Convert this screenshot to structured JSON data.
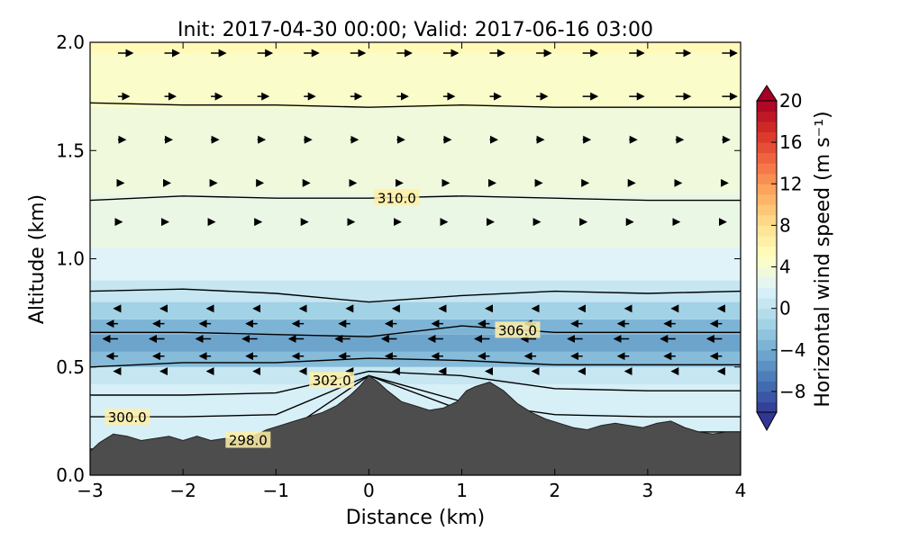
{
  "chart_data": {
    "type": "heatmap",
    "title": "Init: 2017-04-30 00:00; Valid: 2017-06-16 03:00",
    "xlabel": "Distance (km)",
    "ylabel": "Altitude (km)",
    "xlim": [
      -3,
      4
    ],
    "ylim": [
      0,
      2
    ],
    "xticks": [
      "−3",
      "−2",
      "−1",
      "0",
      "1",
      "2",
      "3",
      "4"
    ],
    "yticks": [
      "0.0",
      "0.5",
      "1.0",
      "1.5",
      "2.0"
    ],
    "colorbar": {
      "label": "Horizontal wind speed (m s⁻¹)",
      "range": [
        -10,
        20
      ],
      "extend": "both",
      "ticks": [
        "−8",
        "−4",
        "0",
        "4",
        "8",
        "12",
        "16",
        "20"
      ],
      "colormap": "RdYlBu_r"
    },
    "terrain": {
      "color": "#4d4d4d",
      "x": [
        -3,
        -2.9,
        -2.75,
        -2.6,
        -2.45,
        -2.3,
        -2.15,
        -2.0,
        -1.85,
        -1.7,
        -1.55,
        -1.4,
        -1.25,
        -1.1,
        -0.95,
        -0.8,
        -0.65,
        -0.5,
        -0.35,
        -0.2,
        -0.1,
        0.0,
        0.1,
        0.2,
        0.35,
        0.5,
        0.65,
        0.8,
        0.95,
        1.05,
        1.15,
        1.3,
        1.45,
        1.6,
        1.75,
        1.9,
        2.05,
        2.2,
        2.35,
        2.5,
        2.65,
        2.8,
        2.95,
        3.1,
        3.25,
        3.4,
        3.55,
        3.7,
        3.85,
        4.0
      ],
      "height": [
        0.11,
        0.15,
        0.19,
        0.18,
        0.16,
        0.17,
        0.18,
        0.16,
        0.18,
        0.16,
        0.17,
        0.16,
        0.18,
        0.21,
        0.23,
        0.25,
        0.27,
        0.29,
        0.32,
        0.37,
        0.41,
        0.46,
        0.43,
        0.39,
        0.34,
        0.32,
        0.3,
        0.31,
        0.34,
        0.39,
        0.41,
        0.43,
        0.39,
        0.33,
        0.29,
        0.26,
        0.24,
        0.22,
        0.21,
        0.23,
        0.24,
        0.23,
        0.22,
        0.24,
        0.25,
        0.22,
        0.2,
        0.19,
        0.2,
        0.2
      ]
    },
    "wind_speed_bands": [
      {
        "base": 0.0,
        "top": 0.42,
        "value": 1.5
      },
      {
        "base": 0.42,
        "top": 0.5,
        "value": 0.5
      },
      {
        "base": 0.5,
        "top": 0.57,
        "value": -3.0
      },
      {
        "base": 0.57,
        "top": 0.65,
        "value": -4.5
      },
      {
        "base": 0.65,
        "top": 0.72,
        "value": -3.5
      },
      {
        "base": 0.72,
        "top": 0.8,
        "value": -1.5
      },
      {
        "base": 0.8,
        "top": 0.9,
        "value": 0.5
      },
      {
        "base": 0.9,
        "top": 1.05,
        "value": 2.0
      },
      {
        "base": 1.05,
        "top": 1.3,
        "value": 3.0
      },
      {
        "base": 1.3,
        "top": 1.7,
        "value": 3.5
      },
      {
        "base": 1.7,
        "top": 1.95,
        "value": 4.5
      },
      {
        "base": 1.95,
        "top": 2.0,
        "value": 5.5
      }
    ],
    "potential_temperature_contours": [
      {
        "level": 298.0,
        "label": "298.0",
        "label_x": -1.3,
        "points": [
          [
            -3,
            0.12
          ],
          [
            -2,
            0.15
          ],
          [
            -1,
            0.17
          ],
          [
            0,
            0.46
          ],
          [
            1,
            0.3
          ],
          [
            2,
            0.2
          ],
          [
            3,
            0.2
          ],
          [
            4,
            0.2
          ]
        ]
      },
      {
        "level": 300.0,
        "label": "300.0",
        "label_x": -2.6,
        "points": [
          [
            -3,
            0.27
          ],
          [
            -2,
            0.27
          ],
          [
            -1,
            0.28
          ],
          [
            0,
            0.46
          ],
          [
            1,
            0.34
          ],
          [
            2,
            0.28
          ],
          [
            3,
            0.27
          ],
          [
            4,
            0.27
          ]
        ]
      },
      {
        "level": 302.0,
        "label": "302.0",
        "label_x": -0.4,
        "points": [
          [
            -3,
            0.37
          ],
          [
            -2,
            0.37
          ],
          [
            -1,
            0.38
          ],
          [
            0,
            0.48
          ],
          [
            1,
            0.46
          ],
          [
            2,
            0.4
          ],
          [
            3,
            0.39
          ],
          [
            4,
            0.39
          ]
        ]
      },
      {
        "level": 304.0,
        "label": "",
        "label_x": 0,
        "points": [
          [
            -3,
            0.5
          ],
          [
            -2,
            0.52
          ],
          [
            -1,
            0.52
          ],
          [
            0,
            0.54
          ],
          [
            1,
            0.53
          ],
          [
            2,
            0.51
          ],
          [
            3,
            0.51
          ],
          [
            4,
            0.51
          ]
        ]
      },
      {
        "level": 306.0,
        "label": "306.0",
        "label_x": 1.6,
        "points": [
          [
            -3,
            0.66
          ],
          [
            -2,
            0.66
          ],
          [
            -1,
            0.65
          ],
          [
            0,
            0.64
          ],
          [
            1,
            0.69
          ],
          [
            2,
            0.66
          ],
          [
            3,
            0.66
          ],
          [
            4,
            0.66
          ]
        ]
      },
      {
        "level": 308.0,
        "label": "",
        "label_x": 0,
        "points": [
          [
            -3,
            0.85
          ],
          [
            -2,
            0.86
          ],
          [
            -1,
            0.84
          ],
          [
            0,
            0.8
          ],
          [
            1,
            0.83
          ],
          [
            2,
            0.85
          ],
          [
            3,
            0.84
          ],
          [
            4,
            0.85
          ]
        ]
      },
      {
        "level": 310.0,
        "label": "310.0",
        "label_x": 0.3,
        "points": [
          [
            -3,
            1.27
          ],
          [
            -2,
            1.29
          ],
          [
            -1,
            1.28
          ],
          [
            0,
            1.28
          ],
          [
            1,
            1.29
          ],
          [
            2,
            1.28
          ],
          [
            3,
            1.27
          ],
          [
            4,
            1.27
          ]
        ]
      },
      {
        "level": 312.0,
        "label": "",
        "label_x": 0,
        "points": [
          [
            -3,
            1.72
          ],
          [
            -2,
            1.71
          ],
          [
            -1,
            1.71
          ],
          [
            0,
            1.7
          ],
          [
            1,
            1.71
          ],
          [
            2,
            1.7
          ],
          [
            3,
            1.7
          ],
          [
            4,
            1.7
          ]
        ]
      }
    ],
    "wind_vectors": {
      "x": [
        -2.7,
        -2.2,
        -1.7,
        -1.2,
        -0.7,
        -0.2,
        0.3,
        0.8,
        1.3,
        1.8,
        2.3,
        2.8,
        3.3,
        3.8
      ],
      "rows": [
        {
          "z": 1.95,
          "u": [
            4,
            4,
            4,
            4,
            4,
            4,
            4,
            4,
            4,
            4,
            4,
            4,
            4,
            4
          ]
        },
        {
          "z": 1.75,
          "u": [
            3,
            3,
            3,
            3,
            3,
            3,
            3,
            3,
            3,
            3,
            4,
            4,
            4,
            4
          ]
        },
        {
          "z": 1.55,
          "u": [
            2,
            2,
            2,
            2,
            2,
            2,
            2,
            2,
            2,
            2,
            2,
            2,
            2,
            2
          ]
        },
        {
          "z": 1.35,
          "u": [
            1.5,
            1.5,
            1.5,
            1.5,
            1.5,
            1.5,
            1.5,
            1.5,
            1.5,
            1.5,
            1.5,
            1.5,
            1.5,
            1.5
          ]
        },
        {
          "z": 1.17,
          "u": [
            1,
            1,
            1,
            1,
            1,
            1,
            1,
            1,
            1,
            1,
            1,
            1,
            1,
            1
          ]
        },
        {
          "z": 0.77,
          "u": [
            -1,
            -1,
            -1,
            -1,
            -1,
            -1,
            -1,
            -1,
            -1,
            -1,
            -1,
            -1,
            -1,
            -1
          ]
        },
        {
          "z": 0.7,
          "u": [
            -3,
            -3,
            -3,
            -3,
            -3,
            -3,
            -3,
            -3,
            -3,
            -3,
            -3,
            -3,
            -3,
            -3
          ]
        },
        {
          "z": 0.63,
          "u": [
            -4,
            -4,
            -4,
            -4,
            -4,
            -4,
            -4,
            -4,
            -4,
            -4,
            -4,
            -4,
            -4,
            -4
          ]
        },
        {
          "z": 0.55,
          "u": [
            -3,
            -3,
            -3,
            -3,
            -3,
            -3,
            -3,
            -3,
            -3,
            -3,
            -3,
            -3,
            -3,
            -3
          ]
        },
        {
          "z": 0.48,
          "u": [
            -1,
            -1,
            -1,
            -1,
            -1,
            -1,
            -1,
            -1,
            -1,
            -1,
            -1,
            -1,
            -1,
            -1
          ]
        }
      ]
    }
  }
}
